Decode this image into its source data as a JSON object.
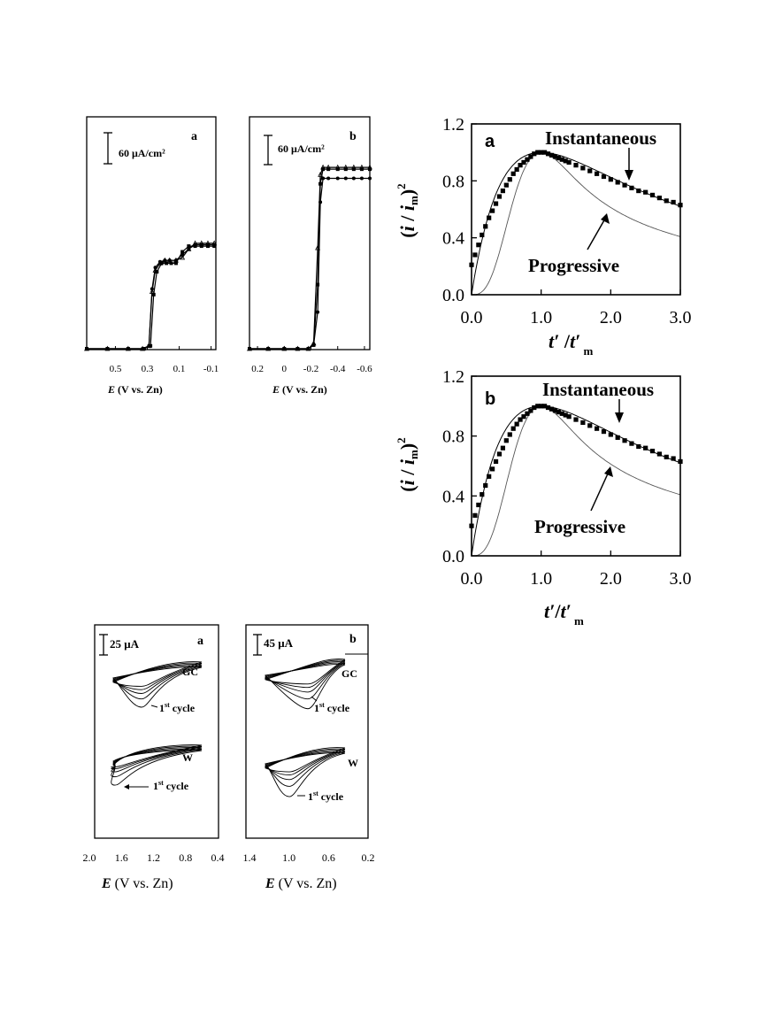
{
  "chart_data": [
    {
      "id": "lsv_a",
      "type": "line",
      "panel_letter": "a",
      "scale_bar": "60 μA/cm²",
      "x_ticks": [
        "0.5",
        "0.3",
        "0.1",
        "-0.1"
      ],
      "x_tick_values": [
        0.5,
        0.3,
        0.1,
        -0.1
      ],
      "xlim": [
        0.68,
        -0.13
      ],
      "ylim": [
        0,
        1
      ],
      "xlabel_italic": "E",
      "xlabel_rest": " (V vs. Zn)",
      "series": [
        {
          "marker": "triangle",
          "x": [
            0.68,
            0.55,
            0.42,
            0.33,
            0.29,
            0.27,
            0.25,
            0.22,
            0.19,
            0.16,
            0.12,
            0.08,
            0.04,
            0.0,
            -0.04,
            -0.08,
            -0.12
          ],
          "y": [
            0,
            0,
            0,
            0,
            0.02,
            0.4,
            0.55,
            0.6,
            0.62,
            0.62,
            0.62,
            0.64,
            0.7,
            0.74,
            0.74,
            0.74,
            0.74
          ]
        },
        {
          "marker": "circle",
          "x": [
            0.68,
            0.55,
            0.42,
            0.33,
            0.29,
            0.27,
            0.25,
            0.22,
            0.19,
            0.16,
            0.12,
            0.08,
            0.04,
            0.0,
            -0.04,
            -0.08,
            -0.12
          ],
          "y": [
            0,
            0,
            0,
            0,
            0.02,
            0.42,
            0.57,
            0.61,
            0.62,
            0.62,
            0.62,
            0.66,
            0.7,
            0.73,
            0.73,
            0.73,
            0.73
          ]
        },
        {
          "marker": "square",
          "x": [
            0.68,
            0.55,
            0.42,
            0.32,
            0.28,
            0.26,
            0.24,
            0.21,
            0.18,
            0.15,
            0.12,
            0.08,
            0.04,
            0.0,
            -0.04,
            -0.08,
            -0.12
          ],
          "y": [
            0,
            0,
            0,
            0,
            0.02,
            0.38,
            0.54,
            0.6,
            0.6,
            0.6,
            0.6,
            0.68,
            0.72,
            0.72,
            0.72,
            0.72,
            0.72
          ]
        }
      ]
    },
    {
      "id": "lsv_b",
      "type": "line",
      "panel_letter": "b",
      "scale_bar": "60 μA/cm²",
      "x_ticks": [
        "0.2",
        "0",
        "-0.2",
        "-0.4",
        "-0.6"
      ],
      "x_tick_values": [
        0.2,
        0.0,
        -0.2,
        -0.4,
        -0.6
      ],
      "xlim": [
        0.26,
        -0.64
      ],
      "ylim": [
        0,
        1
      ],
      "xlabel_italic": "E",
      "xlabel_rest": " (V vs. Zn)",
      "series": [
        {
          "marker": "triangle",
          "x": [
            0.26,
            0.12,
            0.0,
            -0.1,
            -0.18,
            -0.22,
            -0.25,
            -0.27,
            -0.29,
            -0.33,
            -0.4,
            -0.46,
            -0.52,
            -0.58,
            -0.64
          ],
          "y": [
            0,
            0,
            0,
            0,
            0,
            0.03,
            0.55,
            0.95,
            0.99,
            0.99,
            0.99,
            0.99,
            0.99,
            0.99,
            0.99
          ]
        },
        {
          "marker": "square",
          "x": [
            0.26,
            0.12,
            0.0,
            -0.1,
            -0.18,
            -0.22,
            -0.25,
            -0.27,
            -0.29,
            -0.33,
            -0.4,
            -0.46,
            -0.52,
            -0.58,
            -0.64
          ],
          "y": [
            0,
            0,
            0,
            0,
            0,
            0.02,
            0.35,
            0.9,
            0.98,
            0.98,
            0.98,
            0.98,
            0.98,
            0.98,
            0.98
          ]
        },
        {
          "marker": "circle",
          "x": [
            0.26,
            0.12,
            0.0,
            -0.1,
            -0.18,
            -0.22,
            -0.25,
            -0.27,
            -0.29,
            -0.33,
            -0.4,
            -0.46,
            -0.52,
            -0.58,
            -0.64
          ],
          "y": [
            0,
            0,
            0,
            0,
            0,
            0.02,
            0.2,
            0.8,
            0.93,
            0.93,
            0.93,
            0.93,
            0.93,
            0.93,
            0.93
          ]
        }
      ]
    },
    {
      "id": "nuc_a",
      "type": "line",
      "panel_letter": "a",
      "xlim": [
        0,
        3.0
      ],
      "ylim": [
        0,
        1.2
      ],
      "x_ticks": [
        "0.0",
        "1.0",
        "2.0",
        "3.0"
      ],
      "x_tick_values": [
        0,
        1,
        2,
        3
      ],
      "y_ticks": [
        "0.0",
        "0.4",
        "0.8",
        "1.2"
      ],
      "y_tick_values": [
        0,
        0.4,
        0.8,
        1.2
      ],
      "ylabel": "(i / i m)²",
      "xlabel": "t′ / t′ m",
      "annotation_top": "Instantaneous",
      "annotation_bottom": "Progressive",
      "experimental_points": {
        "x": [
          0.0,
          0.05,
          0.1,
          0.15,
          0.2,
          0.25,
          0.3,
          0.35,
          0.4,
          0.45,
          0.5,
          0.55,
          0.6,
          0.65,
          0.7,
          0.75,
          0.8,
          0.85,
          0.9,
          0.95,
          1.0,
          1.05,
          1.1,
          1.15,
          1.2,
          1.25,
          1.3,
          1.35,
          1.4,
          1.5,
          1.6,
          1.7,
          1.8,
          1.9,
          2.0,
          2.1,
          2.2,
          2.3,
          2.4,
          2.5,
          2.6,
          2.7,
          2.8,
          2.9,
          3.0
        ],
        "y": [
          0.21,
          0.28,
          0.35,
          0.42,
          0.48,
          0.54,
          0.59,
          0.64,
          0.69,
          0.73,
          0.77,
          0.81,
          0.85,
          0.88,
          0.91,
          0.93,
          0.95,
          0.97,
          0.99,
          1.0,
          1.0,
          1.0,
          0.99,
          0.98,
          0.97,
          0.96,
          0.95,
          0.94,
          0.93,
          0.91,
          0.89,
          0.87,
          0.85,
          0.83,
          0.81,
          0.79,
          0.77,
          0.75,
          0.73,
          0.72,
          0.7,
          0.68,
          0.66,
          0.65,
          0.63
        ]
      }
    },
    {
      "id": "nuc_b",
      "type": "line",
      "panel_letter": "b",
      "xlim": [
        0,
        3.0
      ],
      "ylim": [
        0,
        1.2
      ],
      "x_ticks": [
        "0.0",
        "1.0",
        "2.0",
        "3.0"
      ],
      "x_tick_values": [
        0,
        1,
        2,
        3
      ],
      "y_ticks": [
        "0.0",
        "0.4",
        "0.8",
        "1.2"
      ],
      "y_tick_values": [
        0,
        0.4,
        0.8,
        1.2
      ],
      "ylabel": "(i / i m)²",
      "xlabel": "t′/t′ m",
      "annotation_top": "Instantaneous",
      "annotation_bottom": "Progressive",
      "experimental_points": {
        "x": [
          0.0,
          0.05,
          0.1,
          0.15,
          0.2,
          0.25,
          0.3,
          0.35,
          0.4,
          0.45,
          0.5,
          0.55,
          0.6,
          0.65,
          0.7,
          0.75,
          0.8,
          0.85,
          0.9,
          0.95,
          1.0,
          1.05,
          1.1,
          1.15,
          1.2,
          1.25,
          1.3,
          1.35,
          1.4,
          1.5,
          1.6,
          1.7,
          1.8,
          1.9,
          2.0,
          2.1,
          2.2,
          2.3,
          2.4,
          2.5,
          2.6,
          2.7,
          2.8,
          2.9,
          3.0
        ],
        "y": [
          0.2,
          0.27,
          0.34,
          0.41,
          0.47,
          0.53,
          0.58,
          0.63,
          0.68,
          0.72,
          0.77,
          0.81,
          0.85,
          0.88,
          0.91,
          0.93,
          0.95,
          0.97,
          0.99,
          1.0,
          1.0,
          1.0,
          0.99,
          0.98,
          0.97,
          0.96,
          0.95,
          0.94,
          0.93,
          0.91,
          0.89,
          0.87,
          0.85,
          0.83,
          0.81,
          0.79,
          0.77,
          0.75,
          0.73,
          0.72,
          0.7,
          0.68,
          0.66,
          0.65,
          0.63
        ]
      }
    },
    {
      "id": "cv_a",
      "type": "line",
      "panel_letter": "a",
      "scale_bar": "25 μA",
      "x_ticks": [
        "2.0",
        "1.6",
        "1.2",
        "0.8",
        "0.4"
      ],
      "x_tick_values": [
        2.0,
        1.6,
        1.2,
        0.8,
        0.4
      ],
      "xlim": [
        2.0,
        0.4
      ],
      "xlabel_italic": "E",
      "xlabel_rest": " (V vs. Zn)",
      "labels": {
        "gc": "GC",
        "w": "W",
        "cycle": "1st cycle",
        "cycle_num": "1",
        "cycle_sup": "st",
        "cycle_word": " cycle"
      },
      "gc_peak_depths": [
        0.5,
        0.35,
        0.25,
        0.18,
        0.12
      ],
      "w_peak_depths": [
        0.45,
        0.28,
        0.18,
        0.12,
        0.08
      ]
    },
    {
      "id": "cv_b",
      "type": "line",
      "panel_letter": "b",
      "scale_bar": "45 μA",
      "x_ticks": [
        "1.4",
        "1.0",
        "0.6",
        "0.2"
      ],
      "x_tick_values": [
        1.4,
        1.0,
        0.6,
        0.2
      ],
      "xlim": [
        1.4,
        0.2
      ],
      "xlabel_italic": "E",
      "xlabel_rest": "  (V vs. Zn)",
      "labels": {
        "gc": "GC",
        "w": "W",
        "cycle": "1st cycle",
        "cycle_num": "1",
        "cycle_sup": "st",
        "cycle_word": " cycle"
      },
      "gc_peak_depths": [
        0.55,
        0.38,
        0.26,
        0.18,
        0.12
      ],
      "w_peak_depths": [
        0.6,
        0.4,
        0.27,
        0.18,
        0.12
      ]
    }
  ]
}
